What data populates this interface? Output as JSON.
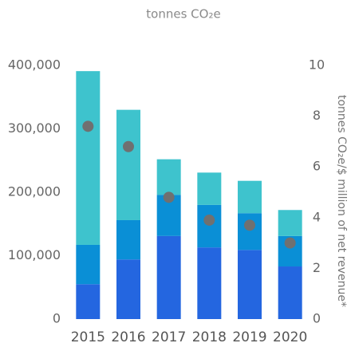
{
  "chart_data": {
    "type": "bar",
    "title": "tonnes CO₂e",
    "y2_label": "tonnes CO₂e/$ million of net revenue*",
    "categories": [
      "2015",
      "2016",
      "2017",
      "2018",
      "2019",
      "2020"
    ],
    "series": [
      {
        "color": "#2466e0",
        "values": [
          55000,
          94000,
          131000,
          113000,
          109000,
          83000
        ]
      },
      {
        "color": "#0a8fd6",
        "values": [
          62000,
          62000,
          65000,
          67000,
          58000,
          48000
        ]
      },
      {
        "color": "#3ec3cd",
        "values": [
          274000,
          174000,
          56000,
          51000,
          51000,
          41000
        ]
      },
      {
        "color": "#707070",
        "axis": "y2",
        "values": [
          7.6,
          6.8,
          4.8,
          3.9,
          3.7,
          3.0
        ]
      }
    ],
    "stacked": true,
    "ylim": [
      0,
      400000
    ],
    "yticks": [
      0,
      {
        "value": 100000,
        "label": "100,000"
      },
      {
        "value": 200000,
        "label": "200,000"
      },
      {
        "value": 300000,
        "label": "300,000"
      },
      {
        "value": 400000,
        "label": "400,000"
      }
    ],
    "y2lim": [
      0,
      10
    ],
    "y2ticks": [
      0,
      2,
      4,
      6,
      8,
      10
    ]
  }
}
